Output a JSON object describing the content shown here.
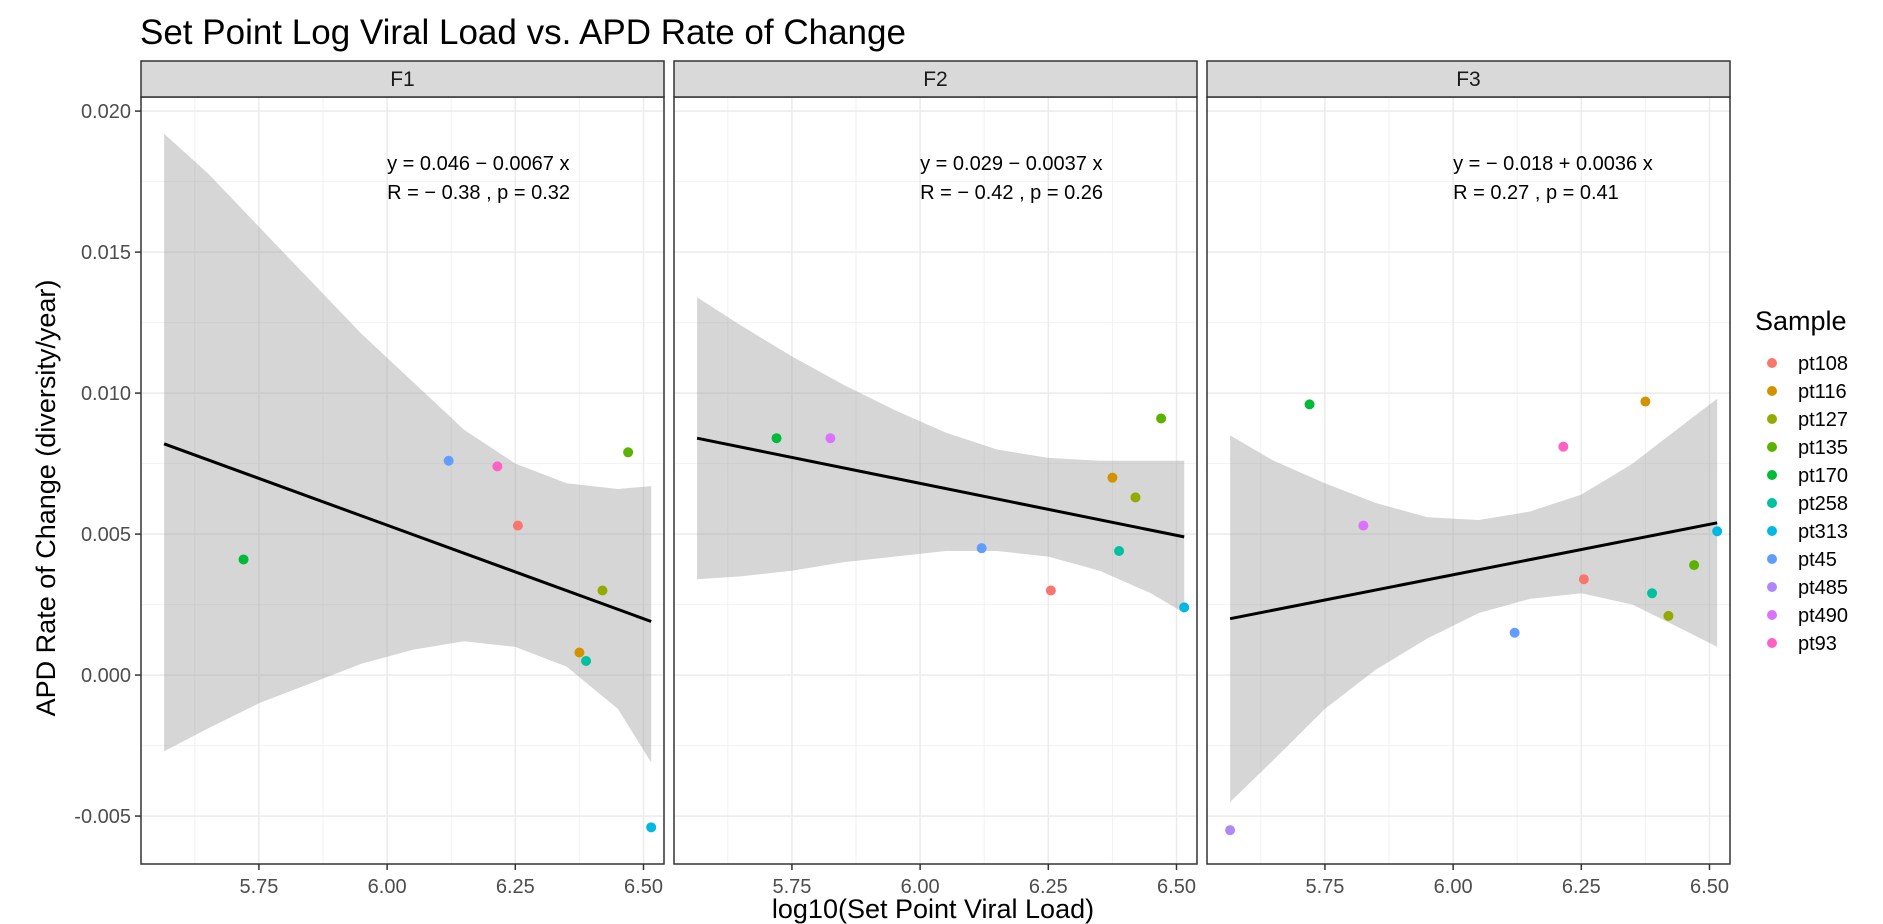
{
  "chart_data": {
    "type": "scatter",
    "title": "Set Point Log Viral Load vs. APD Rate of Change",
    "xlabel": "log10(Set Point Viral Load)",
    "ylabel": "APD Rate of Change (diversity/year)",
    "xlim": [
      5.52,
      6.54
    ],
    "ylim": [
      -0.0067,
      0.0205
    ],
    "x_ticks": [
      5.75,
      6.0,
      6.25,
      6.5
    ],
    "x_tick_labels": [
      "5.75",
      "6.00",
      "6.25",
      "6.50"
    ],
    "y_ticks": [
      -0.005,
      0.0,
      0.005,
      0.01,
      0.015,
      0.02
    ],
    "y_tick_labels": [
      "-0.005",
      "0.000",
      "0.005",
      "0.010",
      "0.015",
      "0.020"
    ],
    "grid": true,
    "legend": {
      "title": "Sample",
      "position": "right",
      "entries": [
        {
          "name": "pt108",
          "color": "#F8766D"
        },
        {
          "name": "pt116",
          "color": "#D39200"
        },
        {
          "name": "pt127",
          "color": "#93AA00"
        },
        {
          "name": "pt135",
          "color": "#5BB300"
        },
        {
          "name": "pt170",
          "color": "#00BA38"
        },
        {
          "name": "pt258",
          "color": "#00C19F"
        },
        {
          "name": "pt313",
          "color": "#00B9E3"
        },
        {
          "name": "pt45",
          "color": "#619CFF"
        },
        {
          "name": "pt485",
          "color": "#AE87FF"
        },
        {
          "name": "pt490",
          "color": "#DB72FB"
        },
        {
          "name": "pt93",
          "color": "#FF61C3"
        }
      ]
    },
    "panels": [
      {
        "name": "F1",
        "equation": "y = 0.046 − 0.0067 x",
        "stats": "R = − 0.38 , p = 0.32",
        "fit": {
          "x": [
            5.565,
            6.515
          ],
          "y": [
            0.0082,
            0.0019
          ]
        },
        "ribbon": {
          "x": [
            5.565,
            5.65,
            5.75,
            5.85,
            5.95,
            6.05,
            6.15,
            6.25,
            6.35,
            6.45,
            6.515
          ],
          "upper": [
            0.0192,
            0.0178,
            0.0159,
            0.014,
            0.0121,
            0.0104,
            0.0087,
            0.0075,
            0.0068,
            0.0066,
            0.0067
          ],
          "lower": [
            -0.0027,
            -0.0019,
            -0.001,
            -0.0003,
            0.0004,
            0.0009,
            0.0012,
            0.001,
            0.0003,
            -0.0012,
            -0.0031
          ]
        },
        "points": [
          {
            "sample": "pt170",
            "x": 5.72,
            "y": 0.0041
          },
          {
            "sample": "pt45",
            "x": 6.12,
            "y": 0.0076
          },
          {
            "sample": "pt93",
            "x": 6.215,
            "y": 0.0074
          },
          {
            "sample": "pt108",
            "x": 6.255,
            "y": 0.0053
          },
          {
            "sample": "pt135",
            "x": 6.47,
            "y": 0.0079
          },
          {
            "sample": "pt127",
            "x": 6.42,
            "y": 0.003
          },
          {
            "sample": "pt116",
            "x": 6.375,
            "y": 0.0008
          },
          {
            "sample": "pt258",
            "x": 6.388,
            "y": 0.0005
          },
          {
            "sample": "pt313",
            "x": 6.515,
            "y": -0.0054
          }
        ]
      },
      {
        "name": "F2",
        "equation": "y = 0.029 − 0.0037 x",
        "stats": "R = − 0.42 , p = 0.26",
        "fit": {
          "x": [
            5.565,
            6.515
          ],
          "y": [
            0.0084,
            0.0049
          ]
        },
        "ribbon": {
          "x": [
            5.565,
            5.65,
            5.75,
            5.85,
            5.95,
            6.05,
            6.15,
            6.25,
            6.35,
            6.45,
            6.515
          ],
          "upper": [
            0.0134,
            0.0124,
            0.0113,
            0.0103,
            0.0094,
            0.0086,
            0.008,
            0.0077,
            0.0076,
            0.0076,
            0.0076
          ],
          "lower": [
            0.0034,
            0.0035,
            0.0037,
            0.004,
            0.0042,
            0.0044,
            0.0044,
            0.0042,
            0.0037,
            0.0029,
            0.0022
          ]
        },
        "points": [
          {
            "sample": "pt170",
            "x": 5.72,
            "y": 0.0084
          },
          {
            "sample": "pt490",
            "x": 5.825,
            "y": 0.0084
          },
          {
            "sample": "pt45",
            "x": 6.12,
            "y": 0.0045
          },
          {
            "sample": "pt108",
            "x": 6.255,
            "y": 0.003
          },
          {
            "sample": "pt116",
            "x": 6.375,
            "y": 0.007
          },
          {
            "sample": "pt258",
            "x": 6.388,
            "y": 0.0044
          },
          {
            "sample": "pt127",
            "x": 6.42,
            "y": 0.0063
          },
          {
            "sample": "pt135",
            "x": 6.47,
            "y": 0.0091
          },
          {
            "sample": "pt313",
            "x": 6.515,
            "y": 0.0024
          }
        ]
      },
      {
        "name": "F3",
        "equation": "y = − 0.018 + 0.0036 x",
        "stats": "R = 0.27 , p = 0.41",
        "fit": {
          "x": [
            5.565,
            6.515
          ],
          "y": [
            0.002,
            0.0054
          ]
        },
        "ribbon": {
          "x": [
            5.565,
            5.65,
            5.75,
            5.85,
            5.95,
            6.05,
            6.15,
            6.25,
            6.35,
            6.45,
            6.515
          ],
          "upper": [
            0.0085,
            0.0076,
            0.0068,
            0.0061,
            0.0056,
            0.0055,
            0.0058,
            0.0064,
            0.0075,
            0.0089,
            0.0098
          ],
          "lower": [
            -0.0045,
            -0.003,
            -0.0012,
            0.0002,
            0.0013,
            0.0022,
            0.0027,
            0.0029,
            0.0025,
            0.0016,
            0.001
          ]
        },
        "points": [
          {
            "sample": "pt485",
            "x": 5.565,
            "y": -0.0055
          },
          {
            "sample": "pt170",
            "x": 5.72,
            "y": 0.0096
          },
          {
            "sample": "pt490",
            "x": 5.825,
            "y": 0.0053
          },
          {
            "sample": "pt45",
            "x": 6.12,
            "y": 0.0015
          },
          {
            "sample": "pt93",
            "x": 6.215,
            "y": 0.0081
          },
          {
            "sample": "pt108",
            "x": 6.255,
            "y": 0.0034
          },
          {
            "sample": "pt116",
            "x": 6.375,
            "y": 0.0097
          },
          {
            "sample": "pt258",
            "x": 6.388,
            "y": 0.0029
          },
          {
            "sample": "pt127",
            "x": 6.42,
            "y": 0.0021
          },
          {
            "sample": "pt135",
            "x": 6.47,
            "y": 0.0039
          },
          {
            "sample": "pt313",
            "x": 6.515,
            "y": 0.0051
          }
        ]
      }
    ]
  }
}
